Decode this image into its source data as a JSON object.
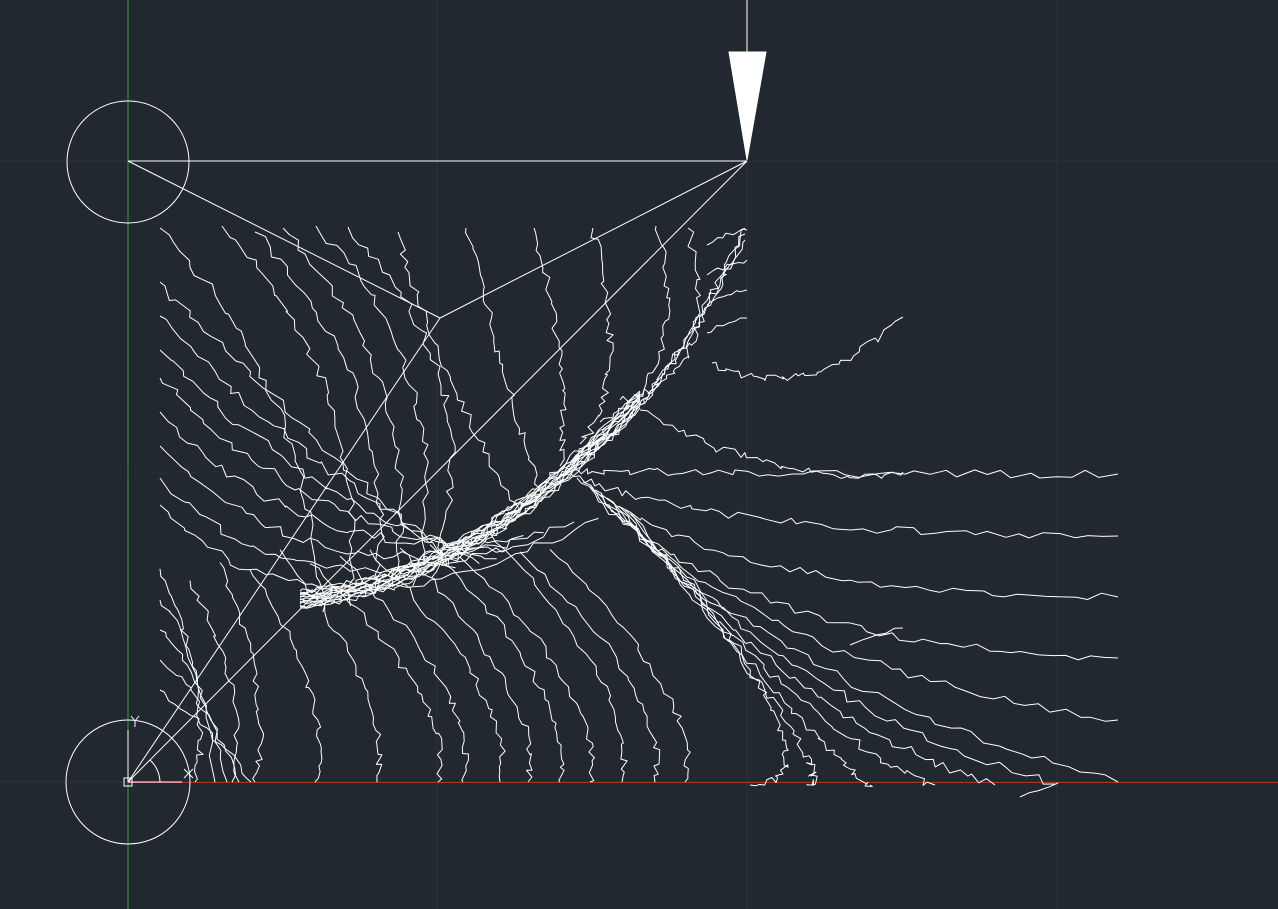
{
  "canvas": {
    "background_color": "#212830",
    "drawing_color": "#ffffff",
    "grid_color": "#2c3440",
    "x_axis_color": "#b0302c",
    "y_axis_color": "#2f9a3a"
  },
  "ucs_icon": {
    "icon": "ucs-origin-icon",
    "x_label": "X",
    "y_label": "Y"
  },
  "drawing": {
    "load_arrow_icon": "arrow-down-icon",
    "support_circle_icon": "circle-icon",
    "crack_pattern": "fractal-crack-lines"
  }
}
